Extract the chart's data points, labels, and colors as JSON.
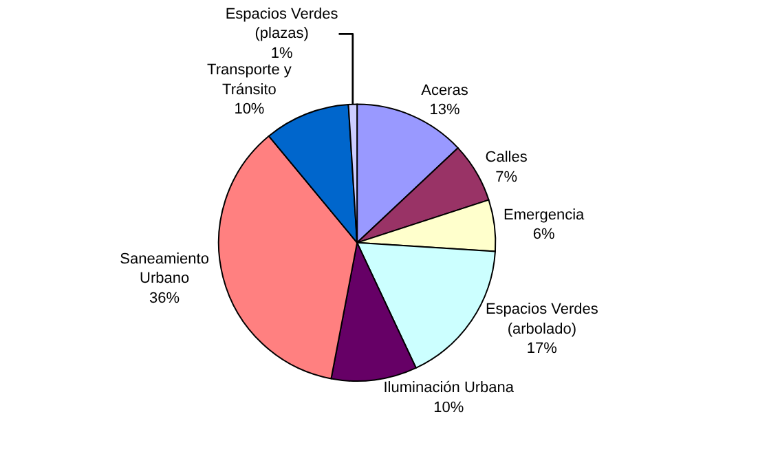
{
  "chart_data": {
    "type": "pie",
    "categories": [
      "Aceras",
      "Calles",
      "Emergencia",
      "Espacios Verdes\n(arbolado)",
      "Iluminación Urbana",
      "Saneamiento\nUrbano",
      "Transporte y\nTránsito",
      "Espacios Verdes\n(plazas)"
    ],
    "values": [
      13,
      7,
      6,
      17,
      10,
      36,
      10,
      1
    ],
    "value_labels": [
      "13%",
      "7%",
      "6%",
      "17%",
      "10%",
      "36%",
      "10%",
      "1%"
    ],
    "colors": [
      "#9999ff",
      "#993366",
      "#ffffcc",
      "#ccffff",
      "#660066",
      "#ff8080",
      "#0066cc",
      "#ccccff"
    ],
    "legend": false
  }
}
